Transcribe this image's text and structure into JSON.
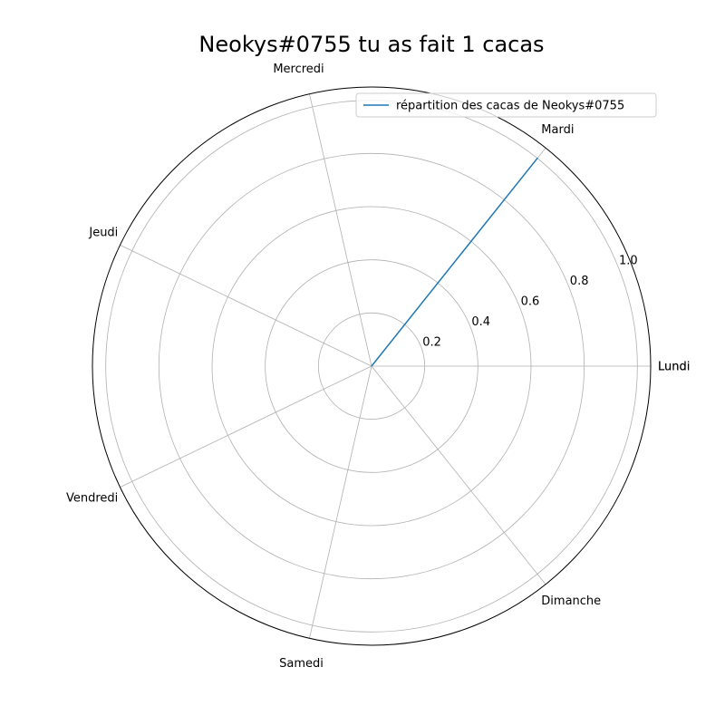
{
  "chart_data": {
    "type": "radar",
    "title": "Neokys#0755 tu as fait 1 cacas",
    "categories": [
      "Lundi",
      "Mardi",
      "Mercredi",
      "Jeudi",
      "Vendredi",
      "Samedi",
      "Dimanche"
    ],
    "closing_label": "Lundi",
    "series": [
      {
        "name": "répartition des cacas de Neokys#0755",
        "values": [
          0,
          1,
          0,
          0,
          0,
          0,
          0
        ],
        "color": "#1f77b4"
      }
    ],
    "r_ticks": [
      "0.2",
      "0.4",
      "0.6",
      "0.8",
      "1.0"
    ],
    "rlim": [
      0,
      1.05
    ],
    "grid": true,
    "legend": "top-right"
  }
}
